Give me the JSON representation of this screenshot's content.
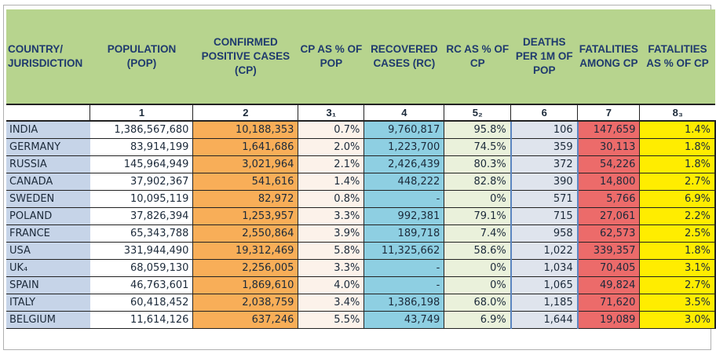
{
  "headers": [
    "COUNTRY/ JURISDICTION",
    "POPULATION (POP)",
    "CONFIRMED POSITIVE CASES (CP)",
    "CP AS % OF POP",
    "RECOVERED CASES (RC)",
    "RC AS % OF CP",
    "DEATHS PER 1M OF POP",
    "FATALITIES AMONG CP",
    "FATALITIES AS % OF CP"
  ],
  "column_numbers": [
    "",
    "1",
    "2",
    "3₁",
    "4",
    "5₂",
    "6",
    "7",
    "8₃"
  ],
  "rows": [
    [
      "INDIA",
      "1,386,567,680",
      "10,188,353",
      "0.7%",
      "9,760,817",
      "95.8%",
      "106",
      "147,659",
      "1.4%"
    ],
    [
      "GERMANY",
      "83,914,199",
      "1,641,686",
      "2.0%",
      "1,223,700",
      "74.5%",
      "359",
      "30,113",
      "1.8%"
    ],
    [
      "RUSSIA",
      "145,964,949",
      "3,021,964",
      "2.1%",
      "2,426,439",
      "80.3%",
      "372",
      "54,226",
      "1.8%"
    ],
    [
      "CANADA",
      "37,902,367",
      "541,616",
      "1.4%",
      "448,222",
      "82.8%",
      "390",
      "14,800",
      "2.7%"
    ],
    [
      "SWEDEN",
      "10,095,119",
      "82,972",
      "0.8%",
      "-",
      "0%",
      "571",
      "5,766",
      "6.9%"
    ],
    [
      "POLAND",
      "37,826,394",
      "1,253,957",
      "3.3%",
      "992,381",
      "79.1%",
      "715",
      "27,061",
      "2.2%"
    ],
    [
      "FRANCE",
      "65,343,788",
      "2,550,864",
      "3.9%",
      "189,718",
      "7.4%",
      "958",
      "62,573",
      "2.5%"
    ],
    [
      "USA",
      "331,944,490",
      "19,312,469",
      "5.8%",
      "11,325,662",
      "58.6%",
      "1,022",
      "339,357",
      "1.8%"
    ],
    [
      "UK₄",
      "68,059,130",
      "2,256,005",
      "3.3%",
      "-",
      "0%",
      "1,034",
      "70,405",
      "3.1%"
    ],
    [
      "SPAIN",
      "46,763,601",
      "1,869,610",
      "4.0%",
      "-",
      "0%",
      "1,065",
      "49,824",
      "2.7%"
    ],
    [
      "ITALY",
      "60,418,452",
      "2,038,759",
      "3.4%",
      "1,386,198",
      "68.0%",
      "1,185",
      "71,620",
      "3.5%"
    ],
    [
      "BELGIUM",
      "11,614,126",
      "637,246",
      "5.5%",
      "43,749",
      "6.9%",
      "1,644",
      "19,089",
      "3.0%"
    ]
  ]
}
